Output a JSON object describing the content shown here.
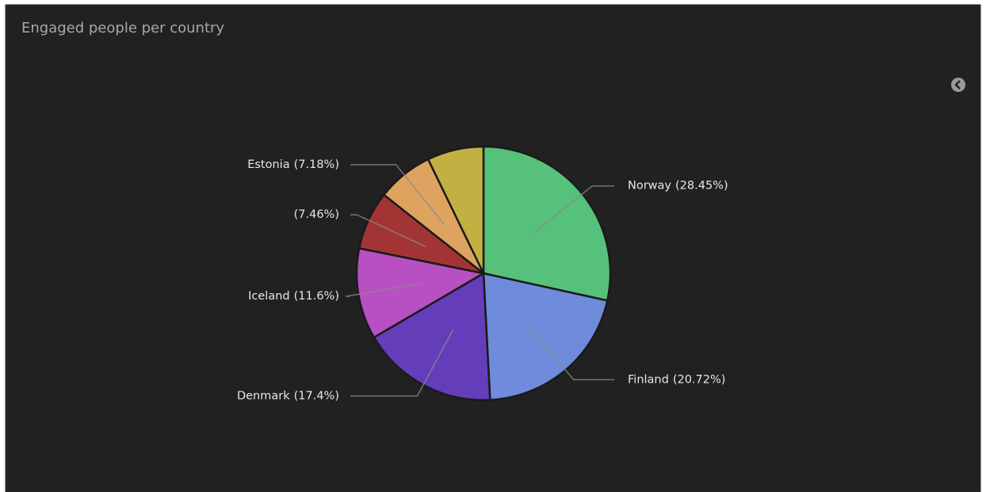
{
  "chart_data": {
    "type": "pie",
    "title": "Engaged people per country",
    "categories": [
      "Norway",
      "Finland",
      "Denmark",
      "Iceland",
      null,
      "Estonia",
      null
    ],
    "values": [
      28.45,
      20.72,
      17.4,
      11.6,
      7.46,
      7.18,
      7.19
    ],
    "value_labels": [
      "(28.45%)",
      "(20.72%)",
      "(17.4%)",
      "(11.6%)",
      "(7.46%)",
      "(7.18%)",
      null
    ],
    "colors": [
      "#56c17b",
      "#6f8bdb",
      "#643dbb",
      "#b84fc2",
      "#a33434",
      "#dea35e",
      "#c2b043"
    ]
  }
}
